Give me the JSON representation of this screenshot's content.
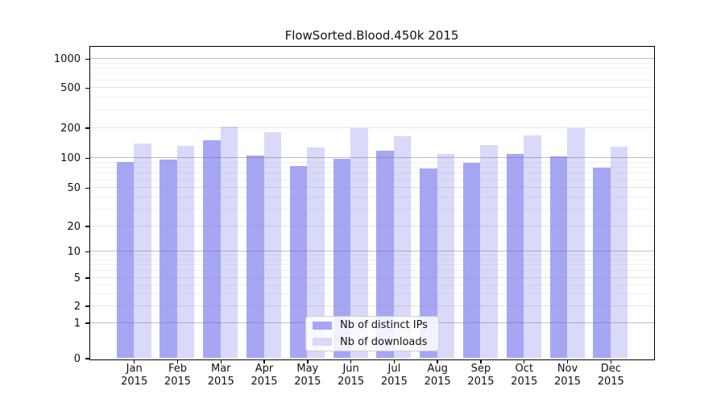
{
  "chart_data": {
    "type": "bar",
    "title": "FlowSorted.Blood.450k 2015",
    "categories": [
      "Jan",
      "Feb",
      "Mar",
      "Apr",
      "May",
      "Jun",
      "Jul",
      "Aug",
      "Sep",
      "Oct",
      "Nov",
      "Dec"
    ],
    "category_year": "2015",
    "series": [
      {
        "name": "Nb of distinct IPs",
        "color": "#a6a6f5",
        "values": [
          90,
          96,
          150,
          106,
          82,
          97,
          118,
          78,
          89,
          110,
          103,
          79
        ]
      },
      {
        "name": "Nb of downloads",
        "color": "#d9d9f9",
        "values": [
          138,
          132,
          207,
          182,
          128,
          198,
          166,
          110,
          134,
          167,
          197,
          129
        ]
      }
    ],
    "yticks": [
      0,
      1,
      2,
      5,
      10,
      20,
      50,
      100,
      200,
      500,
      1000
    ],
    "yscale": "log above 1, linear segment 0-1",
    "ylim": [
      0,
      1300
    ],
    "xlabel": "",
    "ylabel": "",
    "grid": "horizontal major + minor log gridlines, drawn over bars",
    "legend_position": "lower center inside plot"
  },
  "colors": {
    "background": "#ffffff",
    "axis": "#000000",
    "text": "#111111",
    "legend_border": "#cccccc"
  }
}
